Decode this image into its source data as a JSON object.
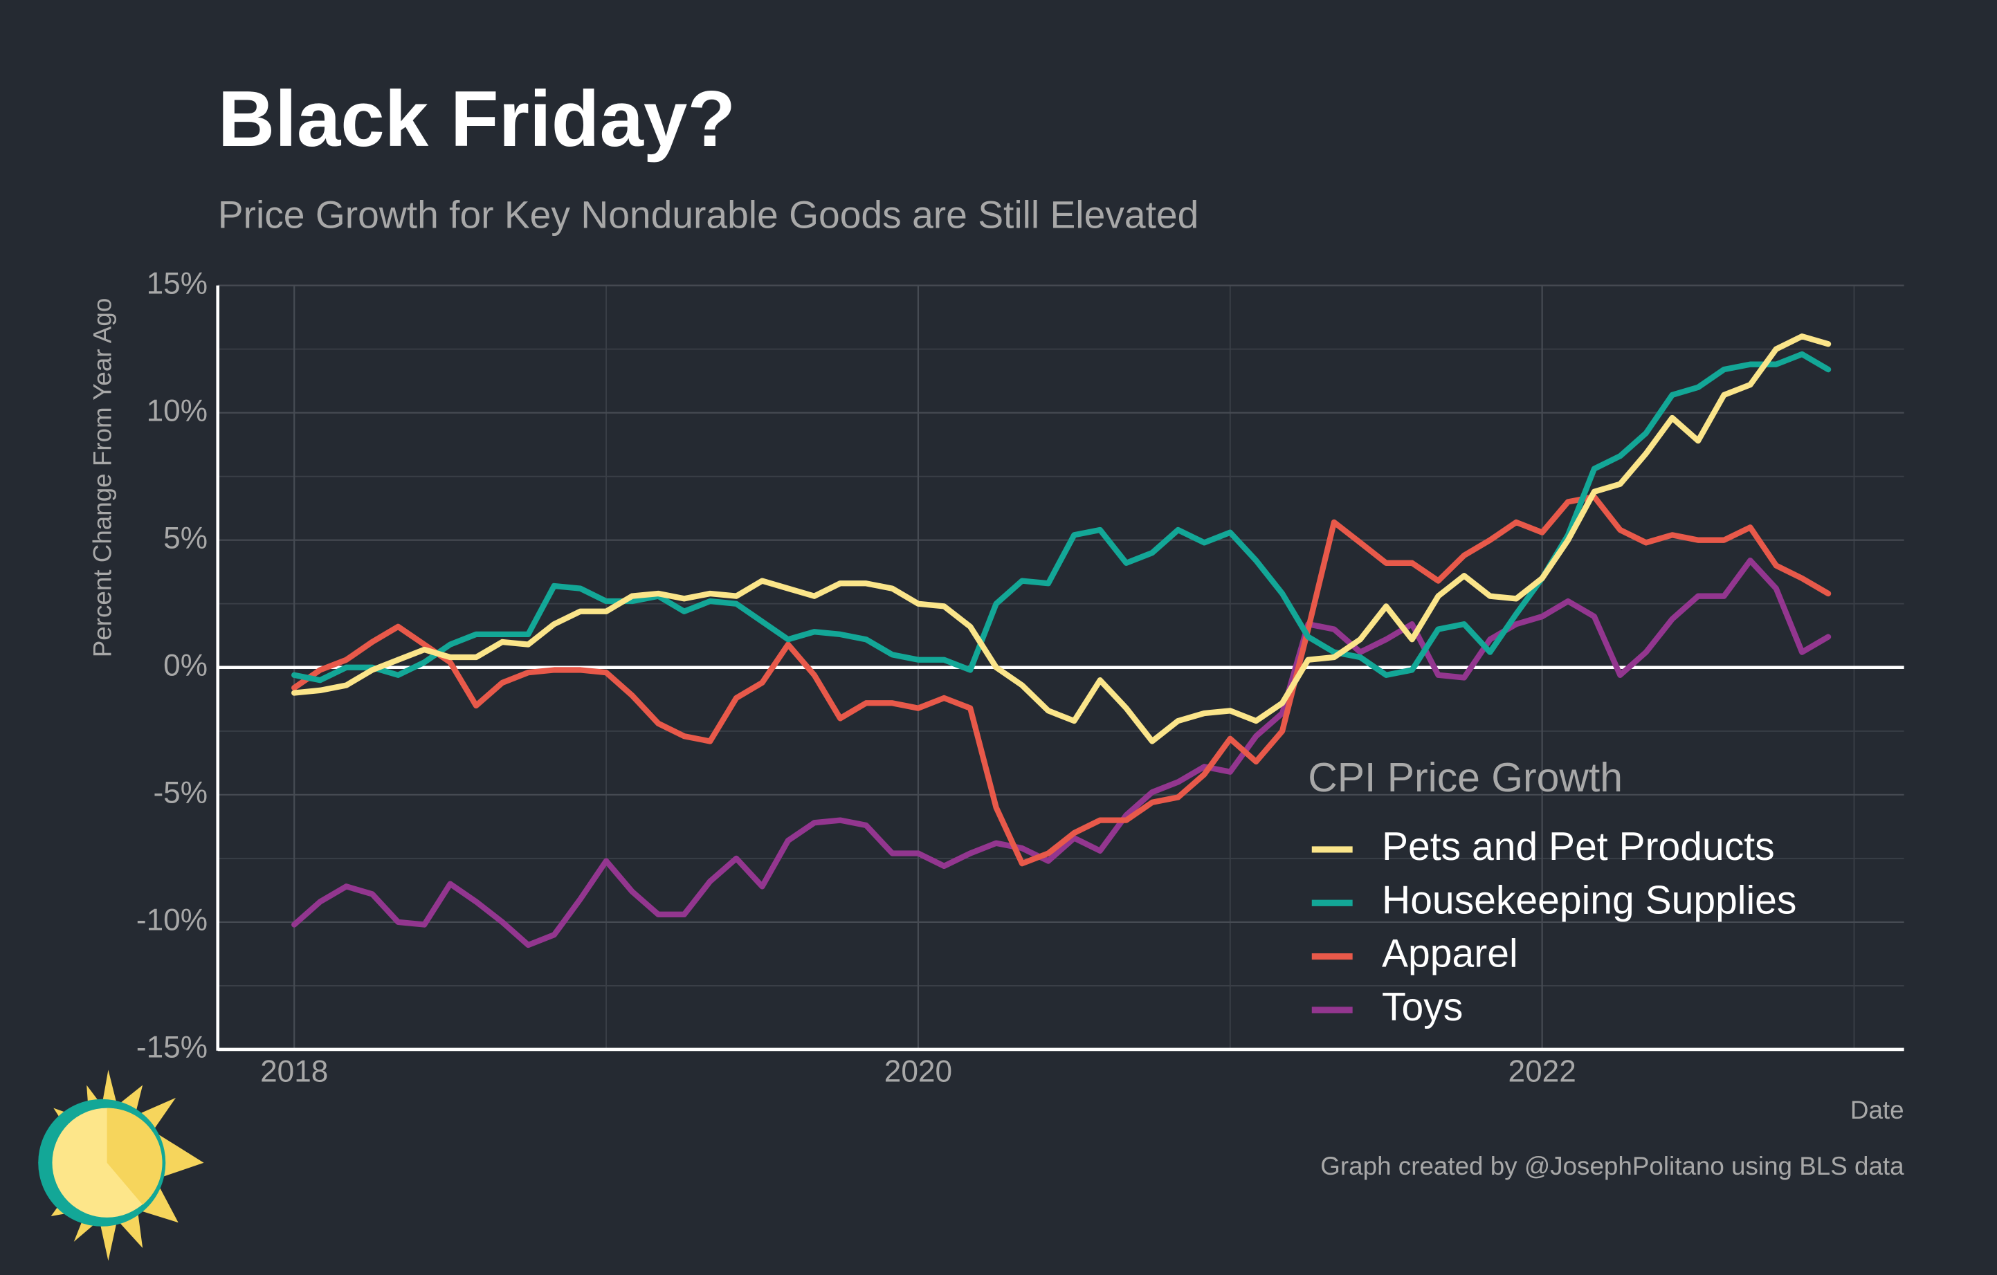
{
  "chart_data": {
    "type": "line",
    "title": "Black Friday?",
    "subtitle": "Price Growth for Key Nondurable Goods are Still Elevated",
    "ylabel": "Percent Change From Year Ago",
    "xlabel": "Date",
    "caption": "Graph created by @JosephPolitano using BLS data",
    "legend_title": "CPI Price Growth",
    "legend_position": "lower right",
    "grid": true,
    "xlim": [
      2017.755,
      2023.16
    ],
    "xticks": [
      2018,
      2020,
      2022
    ],
    "ylim": [
      -15,
      15
    ],
    "yticks": [
      {
        "value": -15,
        "label": "-15%"
      },
      {
        "value": -10,
        "label": "-10%"
      },
      {
        "value": -5,
        "label": "-5%"
      },
      {
        "value": 0,
        "label": "0%"
      },
      {
        "value": 5,
        "label": "5%"
      },
      {
        "value": 10,
        "label": "10%"
      },
      {
        "value": 15,
        "label": "15%"
      }
    ],
    "x": [
      2018,
      2018.083,
      2018.167,
      2018.25,
      2018.333,
      2018.417,
      2018.5,
      2018.583,
      2018.667,
      2018.75,
      2018.833,
      2018.917,
      2019,
      2019.083,
      2019.167,
      2019.25,
      2019.333,
      2019.417,
      2019.5,
      2019.583,
      2019.667,
      2019.75,
      2019.833,
      2019.917,
      2020,
      2020.083,
      2020.167,
      2020.25,
      2020.333,
      2020.417,
      2020.5,
      2020.583,
      2020.667,
      2020.75,
      2020.833,
      2020.917,
      2021,
      2021.083,
      2021.167,
      2021.25,
      2021.333,
      2021.417,
      2021.5,
      2021.583,
      2021.667,
      2021.75,
      2021.833,
      2021.917,
      2022,
      2022.083,
      2022.167,
      2022.25,
      2022.333,
      2022.417,
      2022.5,
      2022.583,
      2022.667,
      2022.75,
      2022.833,
      2022.917
    ],
    "series": [
      {
        "name": "Pets and Pet Products",
        "color": "#fbe58a",
        "values": [
          -1.0,
          -0.9,
          -0.7,
          -0.1,
          0.3,
          0.7,
          0.4,
          0.4,
          1.0,
          0.9,
          1.7,
          2.2,
          2.2,
          2.8,
          2.9,
          2.7,
          2.9,
          2.8,
          3.4,
          3.1,
          2.8,
          3.3,
          3.3,
          3.1,
          2.5,
          2.4,
          1.6,
          0.0,
          -0.7,
          -1.7,
          -2.1,
          -0.5,
          -1.6,
          -2.9,
          -2.1,
          -1.8,
          -1.7,
          -2.1,
          -1.4,
          0.3,
          0.4,
          1.1,
          2.4,
          1.1,
          2.8,
          3.6,
          2.8,
          2.7,
          3.5,
          5.0,
          6.9,
          7.2,
          8.4,
          9.8,
          8.9,
          10.7,
          11.1,
          12.5,
          13.0,
          12.7
        ]
      },
      {
        "name": "Housekeeping Supplies",
        "color": "#13a797",
        "values": [
          -0.3,
          -0.5,
          0.0,
          0.0,
          -0.3,
          0.2,
          0.9,
          1.3,
          1.3,
          1.3,
          3.2,
          3.1,
          2.6,
          2.6,
          2.8,
          2.2,
          2.6,
          2.5,
          1.8,
          1.1,
          1.4,
          1.3,
          1.1,
          0.5,
          0.3,
          0.3,
          -0.1,
          2.5,
          3.4,
          3.3,
          5.2,
          5.4,
          4.1,
          4.5,
          5.4,
          4.9,
          5.3,
          4.2,
          2.9,
          1.2,
          0.6,
          0.4,
          -0.3,
          -0.1,
          1.5,
          1.7,
          0.6,
          2.1,
          3.5,
          5.2,
          7.8,
          8.3,
          9.2,
          10.7,
          11.0,
          11.7,
          11.9,
          11.9,
          12.3,
          11.7
        ]
      },
      {
        "name": "Apparel",
        "color": "#e8594a",
        "values": [
          -0.8,
          -0.1,
          0.3,
          1.0,
          1.6,
          0.9,
          0.2,
          -1.5,
          -0.6,
          -0.2,
          -0.1,
          -0.1,
          -0.2,
          -1.1,
          -2.2,
          -2.7,
          -2.9,
          -1.2,
          -0.6,
          0.9,
          -0.3,
          -2.0,
          -1.4,
          -1.4,
          -1.6,
          -1.2,
          -1.6,
          -5.5,
          -7.7,
          -7.3,
          -6.5,
          -6.0,
          -6.0,
          -5.3,
          -5.1,
          -4.2,
          -2.8,
          -3.7,
          -2.5,
          1.5,
          5.7,
          4.9,
          4.1,
          4.1,
          3.4,
          4.4,
          5.0,
          5.7,
          5.3,
          6.5,
          6.7,
          5.4,
          4.9,
          5.2,
          5.0,
          5.0,
          5.5,
          4.0,
          3.5,
          2.9
        ]
      },
      {
        "name": "Toys",
        "color": "#93368f",
        "values": [
          -10.1,
          -9.2,
          -8.6,
          -8.9,
          -10.0,
          -10.1,
          -8.5,
          -9.2,
          -10.0,
          -10.9,
          -10.5,
          -9.1,
          -7.6,
          -8.8,
          -9.7,
          -9.7,
          -8.4,
          -7.5,
          -8.6,
          -6.8,
          -6.1,
          -6.0,
          -6.2,
          -7.3,
          -7.3,
          -7.8,
          -7.3,
          -6.9,
          -7.1,
          -7.6,
          -6.7,
          -7.2,
          -5.8,
          -4.9,
          -4.5,
          -3.9,
          -4.1,
          -2.7,
          -1.8,
          1.7,
          1.5,
          0.6,
          1.1,
          1.7,
          -0.3,
          -0.4,
          1.1,
          1.7,
          2.0,
          2.6,
          2.0,
          -0.3,
          0.6,
          1.9,
          2.8,
          2.8,
          4.2,
          3.1,
          0.6,
          1.2
        ]
      }
    ]
  }
}
